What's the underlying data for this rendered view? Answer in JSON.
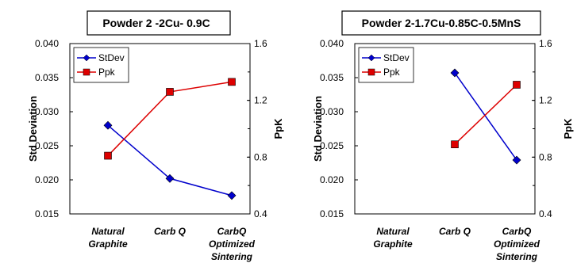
{
  "chart_data": [
    {
      "type": "line",
      "title": "Powder 2 -2Cu- 0.9C",
      "categories": [
        [
          "Natural",
          "Graphite"
        ],
        [
          "Carb Q"
        ],
        [
          "CarbQ",
          "Optimized",
          "Sintering"
        ]
      ],
      "ylabel": "Std Deviation",
      "y2label": "PpK",
      "ylim": [
        0.015,
        0.04
      ],
      "yticks": [
        "0.015",
        "0.020",
        "0.025",
        "0.030",
        "0.035",
        "0.040"
      ],
      "y2lim": [
        0.4,
        1.6
      ],
      "y2ticks": [
        "0.4",
        "0.8",
        "1.2",
        "1.6"
      ],
      "legend_position": "top-left",
      "series": [
        {
          "name": "StDev",
          "axis": "left",
          "color": "#0000cc",
          "marker": "diamond",
          "values": [
            0.028,
            0.0202,
            0.0177
          ]
        },
        {
          "name": "Ppk",
          "axis": "right",
          "color": "#dd0000",
          "marker": "square",
          "values": [
            0.81,
            1.26,
            1.33
          ]
        }
      ],
      "grid": false
    },
    {
      "type": "line",
      "title": "Powder 2-1.7Cu-0.85C-0.5MnS",
      "categories": [
        [
          "Natural",
          "Graphite"
        ],
        [
          "Carb Q"
        ],
        [
          "CarbQ",
          "Optimized",
          "Sintering"
        ]
      ],
      "ylabel": "Std Deviation",
      "y2label": "PpK",
      "ylim": [
        0.015,
        0.04
      ],
      "yticks": [
        "0.015",
        "0.020",
        "0.025",
        "0.030",
        "0.035",
        "0.040"
      ],
      "y2lim": [
        0.4,
        1.6
      ],
      "y2ticks": [
        "0.4",
        "0.8",
        "1.2",
        "1.6"
      ],
      "legend_position": "top-left",
      "series": [
        {
          "name": "StDev",
          "axis": "left",
          "color": "#0000cc",
          "marker": "diamond",
          "values": [
            null,
            0.0357,
            0.0229
          ]
        },
        {
          "name": "Ppk",
          "axis": "right",
          "color": "#dd0000",
          "marker": "square",
          "values": [
            null,
            0.89,
            1.31
          ]
        }
      ],
      "grid": false
    }
  ]
}
